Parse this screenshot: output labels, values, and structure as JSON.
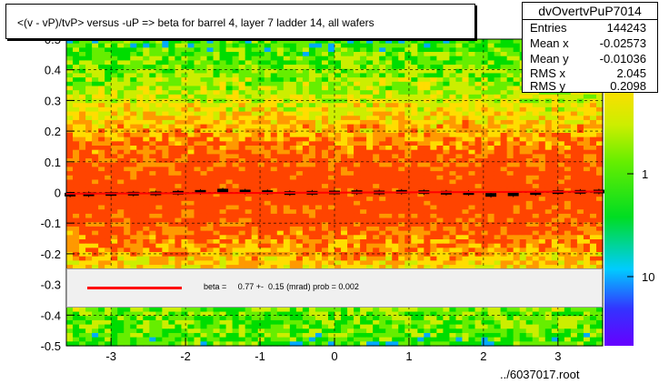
{
  "chart_data": {
    "type": "heatmap",
    "title": "<(v - vP)/tvP> versus  -uP => beta for barrel 4, layer 7 ladder 14, all wafers",
    "xlabel": "",
    "ylabel": "",
    "xlim": [
      -3.6,
      3.6
    ],
    "ylim": [
      -0.5,
      0.5
    ],
    "x_ticks": [
      -3,
      -2,
      -1,
      0,
      1,
      2,
      3
    ],
    "y_ticks": [
      -0.5,
      -0.4,
      -0.3,
      -0.2,
      -0.1,
      0,
      0.1,
      0.2,
      0.3,
      0.4,
      0.5
    ],
    "x_tick_labels": [
      "-3",
      "-2",
      "-1",
      "0",
      "1",
      "2",
      "3"
    ],
    "y_tick_labels": [
      "-0.5",
      "-0.4",
      "-0.3",
      "-0.2",
      "-0.1",
      "0",
      "0.1",
      "0.2",
      "0.3",
      "0.4",
      "0.5"
    ],
    "z_scale": "log",
    "z_tick_labels": [
      "1",
      "10"
    ],
    "grid": true,
    "colormap": [
      "#6600cc",
      "#3333ff",
      "#00aaff",
      "#00dd00",
      "#66ee00",
      "#ccee00",
      "#ffdd00",
      "#ff9900",
      "#ff4400"
    ],
    "profile_points": [
      {
        "x": -3.55,
        "y": -0.007
      },
      {
        "x": -3.3,
        "y": -0.006
      },
      {
        "x": -3.0,
        "y": -0.005
      },
      {
        "x": -2.7,
        "y": -0.004
      },
      {
        "x": -2.4,
        "y": -0.003
      },
      {
        "x": -2.1,
        "y": -0.001
      },
      {
        "x": -1.8,
        "y": 0.002
      },
      {
        "x": -1.5,
        "y": 0.006
      },
      {
        "x": -1.2,
        "y": 0.003
      },
      {
        "x": -0.9,
        "y": 0.001
      },
      {
        "x": -0.6,
        "y": -0.002
      },
      {
        "x": -0.3,
        "y": -0.001
      },
      {
        "x": 0.0,
        "y": 0.0
      },
      {
        "x": 0.3,
        "y": 0.001
      },
      {
        "x": 0.6,
        "y": 0.0
      },
      {
        "x": 0.9,
        "y": 0.002
      },
      {
        "x": 1.2,
        "y": 0.001
      },
      {
        "x": 1.5,
        "y": -0.001
      },
      {
        "x": 1.8,
        "y": -0.002
      },
      {
        "x": 2.1,
        "y": -0.008
      },
      {
        "x": 2.4,
        "y": -0.006
      },
      {
        "x": 2.7,
        "y": -0.002
      },
      {
        "x": 3.0,
        "y": 0.001
      },
      {
        "x": 3.3,
        "y": 0.002
      },
      {
        "x": 3.55,
        "y": 0.003
      }
    ],
    "fit": {
      "beta_mrad": 0.77,
      "error_mrad": 0.15,
      "prob": 0.002,
      "color": "#ff0000"
    }
  },
  "stats": {
    "name": "dvOvertvPuP7014",
    "rows": [
      {
        "label": "Entries",
        "value": "144243"
      },
      {
        "label": "Mean x",
        "value": "-0.02573"
      },
      {
        "label": "Mean y",
        "value": "-0.01036"
      },
      {
        "label": "RMS x",
        "value": "2.045"
      },
      {
        "label": "RMS y",
        "value": "0.2098"
      }
    ]
  },
  "legend": {
    "text": "beta =     0.77 +-  0.15 (mrad) prob = 0.002"
  },
  "footer": {
    "file": "../6037017.root"
  }
}
